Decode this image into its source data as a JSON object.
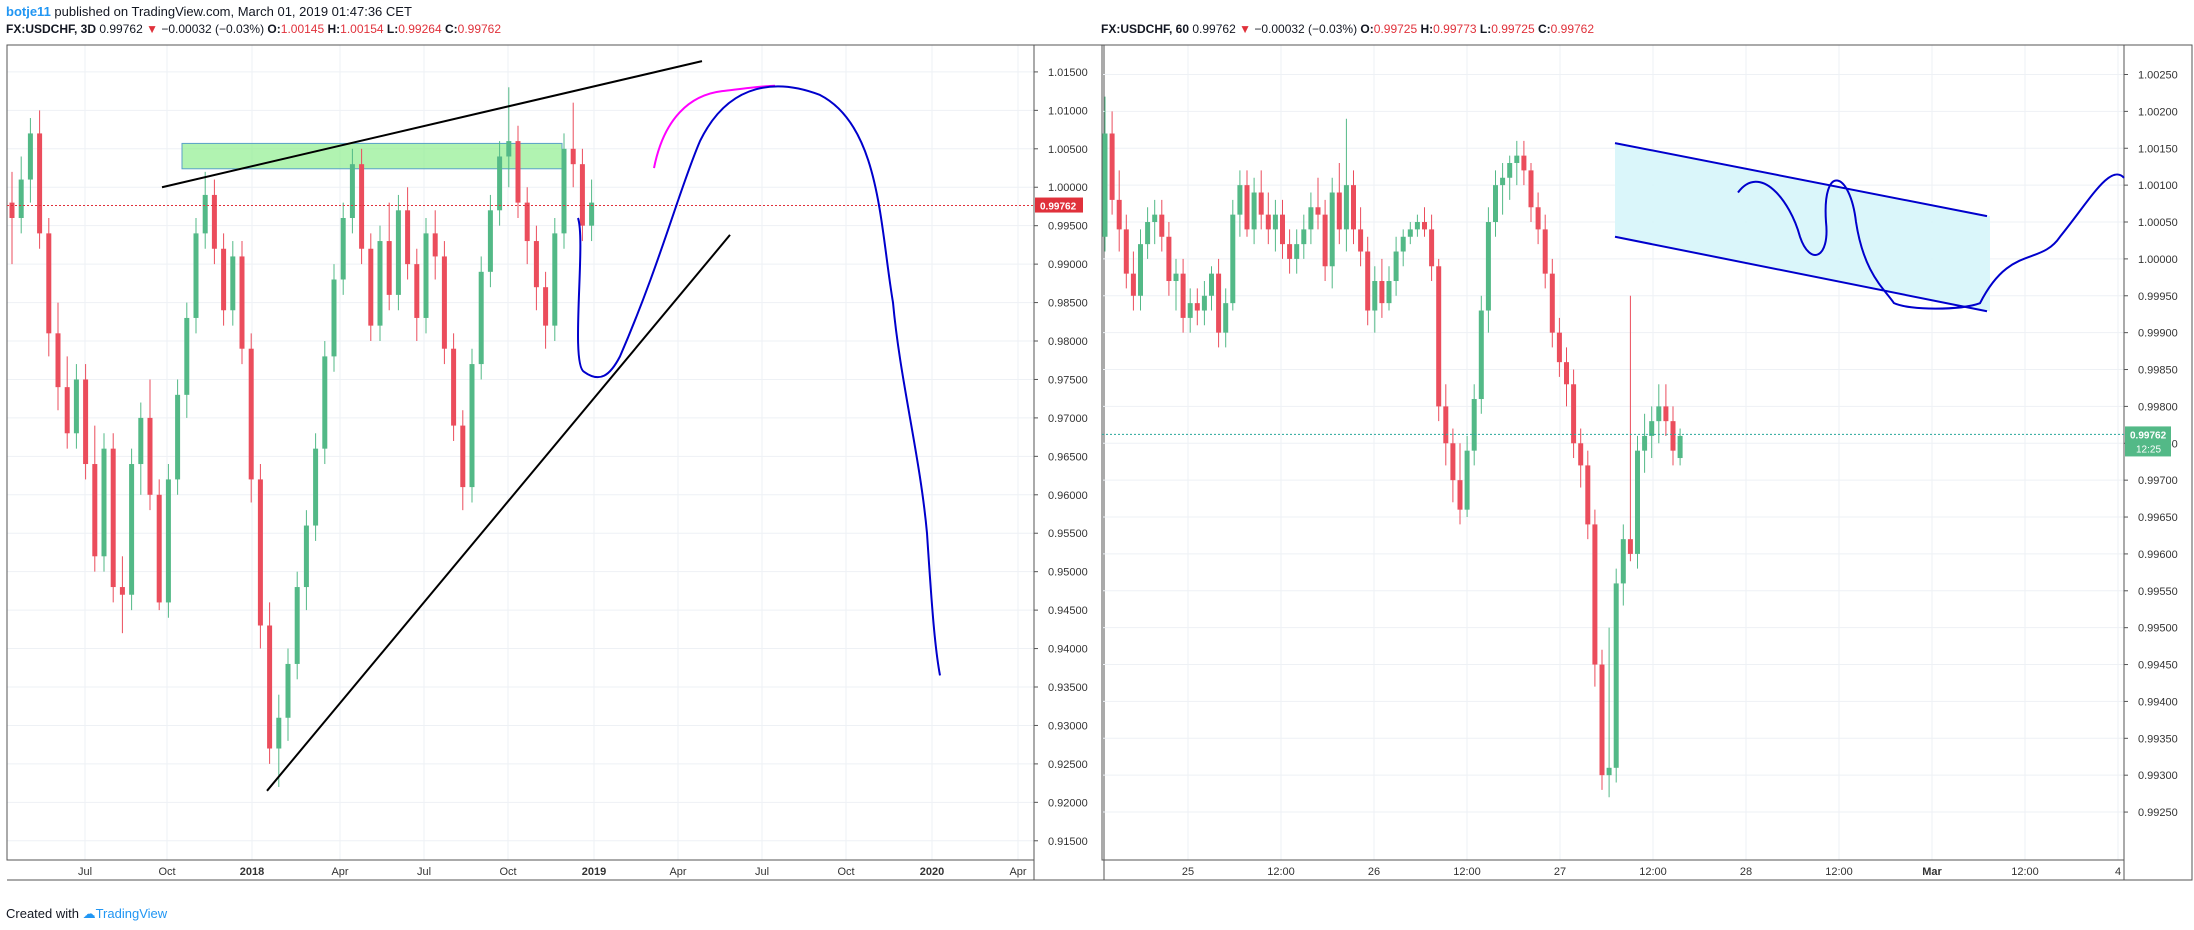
{
  "header": {
    "author": "botje11",
    "text": " published on TradingView.com, March 01, 2019 01:47:36 CET"
  },
  "footer": {
    "text": "Created with ",
    "logo": "TradingView"
  },
  "colors": {
    "up": "#53b987",
    "down": "#eb4d5c",
    "priceLine": "#e0313b",
    "accentBlue": "#2196f3"
  },
  "chart_data": [
    {
      "type": "candlestick",
      "symbol": "FX:USDCHF, 3D",
      "last": "0.99762",
      "change": "−0.00032 (−0.03%)",
      "open": "1.00145",
      "high": "1.00154",
      "low": "0.99264",
      "close": "0.99762",
      "price_label": "0.99762",
      "ylim": [
        0.9125,
        1.0185
      ],
      "y_ticks": [
        "1.01500",
        "1.01000",
        "1.00500",
        "1.00000",
        "0.99500",
        "0.99000",
        "0.98500",
        "0.98000",
        "0.97500",
        "0.97000",
        "0.96500",
        "0.96000",
        "0.95500",
        "0.95000",
        "0.94500",
        "0.94000",
        "0.93500",
        "0.93000",
        "0.92500",
        "0.92000",
        "0.91500"
      ],
      "x_ticks": [
        "Jul",
        "Oct",
        "2018",
        "Apr",
        "Jul",
        "Oct",
        "2019",
        "Apr",
        "Jul",
        "Oct",
        "2020",
        "Apr"
      ],
      "x_bold": [
        "2018",
        "2019",
        "2020"
      ],
      "candles": [
        [
          0.998,
          1.002,
          0.99,
          0.996
        ],
        [
          0.996,
          1.004,
          0.994,
          1.001
        ],
        [
          1.001,
          1.009,
          0.998,
          1.007
        ],
        [
          1.007,
          1.01,
          0.992,
          0.994
        ],
        [
          0.994,
          0.996,
          0.978,
          0.981
        ],
        [
          0.981,
          0.985,
          0.971,
          0.974
        ],
        [
          0.974,
          0.978,
          0.966,
          0.968
        ],
        [
          0.968,
          0.977,
          0.966,
          0.975
        ],
        [
          0.975,
          0.977,
          0.962,
          0.964
        ],
        [
          0.964,
          0.969,
          0.95,
          0.952
        ],
        [
          0.952,
          0.968,
          0.95,
          0.966
        ],
        [
          0.966,
          0.968,
          0.946,
          0.948
        ],
        [
          0.948,
          0.952,
          0.942,
          0.947
        ],
        [
          0.947,
          0.966,
          0.945,
          0.964
        ],
        [
          0.964,
          0.972,
          0.96,
          0.97
        ],
        [
          0.97,
          0.975,
          0.958,
          0.96
        ],
        [
          0.96,
          0.962,
          0.945,
          0.946
        ],
        [
          0.946,
          0.964,
          0.944,
          0.962
        ],
        [
          0.962,
          0.975,
          0.96,
          0.973
        ],
        [
          0.973,
          0.985,
          0.97,
          0.983
        ],
        [
          0.983,
          0.996,
          0.981,
          0.994
        ],
        [
          0.994,
          1.002,
          0.992,
          0.999
        ],
        [
          0.999,
          1.001,
          0.99,
          0.992
        ],
        [
          0.992,
          0.994,
          0.982,
          0.984
        ],
        [
          0.984,
          0.993,
          0.982,
          0.991
        ],
        [
          0.991,
          0.993,
          0.977,
          0.979
        ],
        [
          0.979,
          0.981,
          0.959,
          0.962
        ],
        [
          0.962,
          0.964,
          0.94,
          0.943
        ],
        [
          0.943,
          0.946,
          0.925,
          0.927
        ],
        [
          0.927,
          0.934,
          0.922,
          0.931
        ],
        [
          0.931,
          0.94,
          0.928,
          0.938
        ],
        [
          0.938,
          0.95,
          0.936,
          0.948
        ],
        [
          0.948,
          0.958,
          0.945,
          0.956
        ],
        [
          0.956,
          0.968,
          0.954,
          0.966
        ],
        [
          0.966,
          0.98,
          0.964,
          0.978
        ],
        [
          0.978,
          0.99,
          0.976,
          0.988
        ],
        [
          0.988,
          0.998,
          0.986,
          0.996
        ],
        [
          0.996,
          1.005,
          0.994,
          1.003
        ],
        [
          1.003,
          1.005,
          0.99,
          0.992
        ],
        [
          0.992,
          0.994,
          0.98,
          0.982
        ],
        [
          0.982,
          0.995,
          0.98,
          0.993
        ],
        [
          0.993,
          0.998,
          0.984,
          0.986
        ],
        [
          0.986,
          0.999,
          0.984,
          0.997
        ],
        [
          0.997,
          1.0,
          0.988,
          0.99
        ],
        [
          0.99,
          0.992,
          0.98,
          0.983
        ],
        [
          0.983,
          0.996,
          0.981,
          0.994
        ],
        [
          0.994,
          0.997,
          0.988,
          0.991
        ],
        [
          0.991,
          0.993,
          0.977,
          0.979
        ],
        [
          0.979,
          0.981,
          0.967,
          0.969
        ],
        [
          0.969,
          0.971,
          0.958,
          0.961
        ],
        [
          0.961,
          0.979,
          0.959,
          0.977
        ],
        [
          0.977,
          0.991,
          0.975,
          0.989
        ],
        [
          0.989,
          0.999,
          0.987,
          0.997
        ],
        [
          0.997,
          1.006,
          0.995,
          1.004
        ],
        [
          1.004,
          1.013,
          1.0,
          1.006
        ],
        [
          1.006,
          1.008,
          0.996,
          0.998
        ],
        [
          0.998,
          1.0,
          0.99,
          0.993
        ],
        [
          0.993,
          0.995,
          0.984,
          0.987
        ],
        [
          0.987,
          0.989,
          0.979,
          0.982
        ],
        [
          0.982,
          0.996,
          0.98,
          0.994
        ],
        [
          0.994,
          1.007,
          0.992,
          1.005
        ],
        [
          1.005,
          1.011,
          1.0,
          1.003
        ],
        [
          1.003,
          1.005,
          0.993,
          0.995
        ],
        [
          0.995,
          1.001,
          0.993,
          0.998
        ]
      ],
      "series_colors": {
        "lowerTrend": "#000000",
        "upperTrend": "#000000",
        "zone": "#90ee90",
        "projection": "#0000cc",
        "projectionAlt": "#ff00ff"
      }
    },
    {
      "type": "candlestick",
      "symbol": "FX:USDCHF, 60",
      "last": "0.99762",
      "change": "−0.00032 (−0.03%)",
      "open": "0.99725",
      "high": "0.99773",
      "low": "0.99725",
      "close": "0.99762",
      "price_label": "0.99762",
      "time_label": "12:25",
      "ylim": [
        0.99185,
        1.0029
      ],
      "y_ticks": [
        "1.00250",
        "1.00200",
        "1.00150",
        "1.00100",
        "1.00050",
        "1.00000",
        "0.99950",
        "0.99900",
        "0.99850",
        "0.99800",
        "0.99750",
        "0.99700",
        "0.99650",
        "0.99600",
        "0.99550",
        "0.99500",
        "0.99450",
        "0.99400",
        "0.99350",
        "0.99300",
        "0.99250"
      ],
      "x_ticks": [
        "25",
        "12:00",
        "26",
        "12:00",
        "27",
        "12:00",
        "28",
        "12:00",
        "Mar",
        "12:00",
        "4"
      ],
      "x_bold": [
        "Mar"
      ],
      "candles": [
        [
          1.0003,
          1.0022,
          1.0001,
          1.0017
        ],
        [
          1.0017,
          1.002,
          1.0006,
          1.0008
        ],
        [
          1.0008,
          1.0012,
          1.0001,
          1.0004
        ],
        [
          1.0004,
          1.0006,
          0.9996,
          0.9998
        ],
        [
          0.9998,
          1.0001,
          0.9993,
          0.9995
        ],
        [
          0.9995,
          1.0004,
          0.9993,
          1.0002
        ],
        [
          1.0002,
          1.0007,
          1.0,
          1.0005
        ],
        [
          1.0005,
          1.0008,
          1.0002,
          1.0006
        ],
        [
          1.0006,
          1.0008,
          1.0001,
          1.0003
        ],
        [
          1.0003,
          1.0005,
          0.9995,
          0.9997
        ],
        [
          0.9997,
          1.0,
          0.9993,
          0.9998
        ],
        [
          0.9998,
          1.0,
          0.999,
          0.9992
        ],
        [
          0.9992,
          0.9996,
          0.999,
          0.9994
        ],
        [
          0.9994,
          0.9996,
          0.9991,
          0.9993
        ],
        [
          0.9993,
          0.9997,
          0.9991,
          0.9995
        ],
        [
          0.9995,
          0.9999,
          0.9993,
          0.9998
        ],
        [
          0.9998,
          1.0,
          0.9988,
          0.999
        ],
        [
          0.999,
          0.9996,
          0.9988,
          0.9994
        ],
        [
          0.9994,
          1.0008,
          0.9993,
          1.0006
        ],
        [
          1.0006,
          1.0012,
          1.0003,
          1.001
        ],
        [
          1.001,
          1.0012,
          1.0003,
          1.0004
        ],
        [
          1.0004,
          1.0011,
          1.0002,
          1.0009
        ],
        [
          1.0009,
          1.0012,
          1.0004,
          1.0006
        ],
        [
          1.0006,
          1.0009,
          1.0002,
          1.0004
        ],
        [
          1.0004,
          1.0008,
          1.0001,
          1.0006
        ],
        [
          1.0006,
          1.0008,
          1.0,
          1.0002
        ],
        [
          1.0002,
          1.0004,
          0.9998,
          1.0
        ],
        [
          1.0,
          1.0004,
          0.9998,
          1.0002
        ],
        [
          1.0002,
          1.0006,
          1.0,
          1.0004
        ],
        [
          1.0004,
          1.0009,
          1.0002,
          1.0007
        ],
        [
          1.0007,
          1.0011,
          1.0004,
          1.0006
        ],
        [
          1.0006,
          1.0008,
          0.9997,
          0.9999
        ],
        [
          0.9999,
          1.0011,
          0.9996,
          1.0009
        ],
        [
          1.0009,
          1.0013,
          1.0002,
          1.0004
        ],
        [
          1.0004,
          1.0019,
          1.0001,
          1.001
        ],
        [
          1.001,
          1.0012,
          1.0002,
          1.0004
        ],
        [
          1.0004,
          1.0007,
          0.9999,
          1.0001
        ],
        [
          1.0001,
          1.0003,
          0.9991,
          0.9993
        ],
        [
          0.9993,
          0.9999,
          0.999,
          0.9997
        ],
        [
          0.9997,
          1.0,
          0.9992,
          0.9994
        ],
        [
          0.9994,
          0.9999,
          0.9993,
          0.9997
        ],
        [
          0.9997,
          1.0003,
          0.9995,
          1.0001
        ],
        [
          1.0001,
          1.0004,
          0.9999,
          1.0003
        ],
        [
          1.0003,
          1.0005,
          1.0002,
          1.0004
        ],
        [
          1.0004,
          1.0006,
          1.0003,
          1.0005
        ],
        [
          1.0005,
          1.0007,
          1.0003,
          1.0004
        ],
        [
          1.0004,
          1.0006,
          0.9997,
          0.9999
        ],
        [
          0.9999,
          1.0,
          0.9978,
          0.998
        ],
        [
          0.998,
          0.9983,
          0.9972,
          0.9975
        ],
        [
          0.9975,
          0.9977,
          0.9967,
          0.997
        ],
        [
          0.997,
          0.9975,
          0.9964,
          0.9966
        ],
        [
          0.9966,
          0.9976,
          0.9965,
          0.9974
        ],
        [
          0.9974,
          0.9983,
          0.9972,
          0.9981
        ],
        [
          0.9981,
          0.9995,
          0.9979,
          0.9993
        ],
        [
          0.9993,
          1.0007,
          0.999,
          1.0005
        ],
        [
          1.0005,
          1.0012,
          1.0003,
          1.001
        ],
        [
          1.001,
          1.0013,
          1.0006,
          1.0011
        ],
        [
          1.0011,
          1.0014,
          1.0008,
          1.0013
        ],
        [
          1.0013,
          1.0016,
          1.001,
          1.0014
        ],
        [
          1.0014,
          1.0016,
          1.001,
          1.0012
        ],
        [
          1.0012,
          1.0013,
          1.0005,
          1.0007
        ],
        [
          1.0007,
          1.0009,
          1.0002,
          1.0004
        ],
        [
          1.0004,
          1.0006,
          0.9996,
          0.9998
        ],
        [
          0.9998,
          1.0,
          0.9988,
          0.999
        ],
        [
          0.999,
          0.9992,
          0.9984,
          0.9986
        ],
        [
          0.9986,
          0.9988,
          0.998,
          0.9983
        ],
        [
          0.9983,
          0.9985,
          0.9973,
          0.9975
        ],
        [
          0.9975,
          0.9977,
          0.9969,
          0.9972
        ],
        [
          0.9972,
          0.9974,
          0.9962,
          0.9964
        ],
        [
          0.9964,
          0.9966,
          0.9942,
          0.9945
        ],
        [
          0.9945,
          0.9947,
          0.9928,
          0.993
        ],
        [
          0.993,
          0.995,
          0.9927,
          0.9931
        ],
        [
          0.9931,
          0.9958,
          0.9929,
          0.9956
        ],
        [
          0.9956,
          0.9964,
          0.9953,
          0.9962
        ],
        [
          0.9962,
          0.9995,
          0.9959,
          0.996
        ],
        [
          0.996,
          0.9976,
          0.9958,
          0.9974
        ],
        [
          0.9974,
          0.9979,
          0.9971,
          0.9976
        ],
        [
          0.9976,
          0.998,
          0.9973,
          0.9978
        ],
        [
          0.9978,
          0.9983,
          0.9975,
          0.998
        ],
        [
          0.998,
          0.9983,
          0.9976,
          0.9978
        ],
        [
          0.9978,
          0.998,
          0.9972,
          0.9974
        ],
        [
          0.9973,
          0.9977,
          0.9972,
          0.9976
        ]
      ],
      "series_colors": {
        "channel": "#0000cc",
        "channelFill": "#d6f5fa",
        "projection": "#0000cc"
      }
    }
  ]
}
